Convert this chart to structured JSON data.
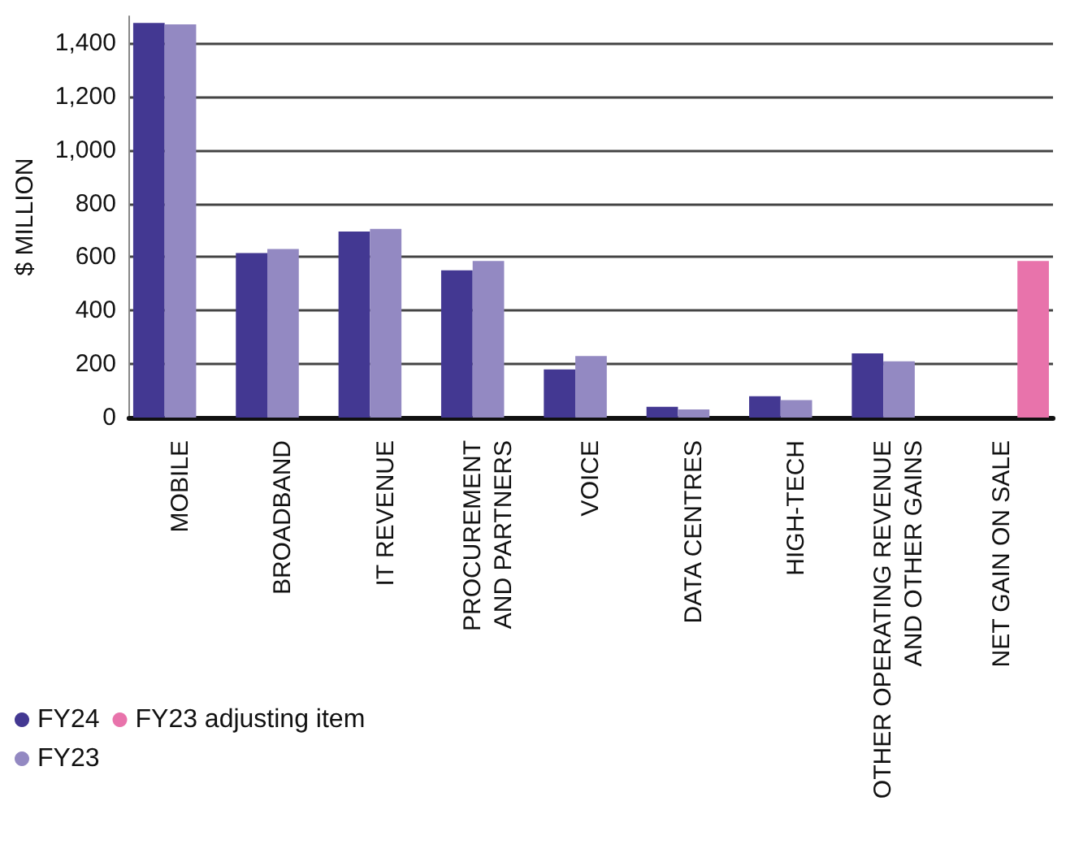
{
  "chart_data": {
    "type": "bar",
    "ylabel": "$ MILLION",
    "categories": [
      "MOBILE",
      "BROADBAND",
      "IT REVENUE",
      "PROCUREMENT\nAND PARTNERS",
      "VOICE",
      "DATA CENTRES",
      "HIGH-TECH",
      "OTHER OPERATING REVENUE\nAND OTHER GAINS",
      "NET GAIN ON SALE"
    ],
    "series": [
      {
        "name": "FY24",
        "color": "#433892",
        "values": [
          1475,
          615,
          695,
          550,
          180,
          40,
          80,
          240,
          null
        ]
      },
      {
        "name": "FY23",
        "color": "#9389c2",
        "values": [
          1470,
          630,
          705,
          585,
          230,
          30,
          65,
          210,
          null
        ]
      },
      {
        "name": "FY23 adjusting item",
        "color": "#e873ab",
        "values": [
          null,
          null,
          null,
          null,
          null,
          null,
          null,
          null,
          585
        ]
      }
    ],
    "ylim": [
      0,
      1500
    ],
    "yticks": [
      0,
      {
        "value": 200,
        "label": "200"
      },
      {
        "value": 400,
        "label": "400"
      },
      {
        "value": 600,
        "label": "600"
      },
      {
        "value": 800,
        "label": "800"
      },
      {
        "value": 1000,
        "label": "1,000"
      },
      {
        "value": 1200,
        "label": "1,200"
      },
      {
        "value": 1400,
        "label": "1,400"
      }
    ],
    "grid": "y",
    "legend": "bottom left"
  }
}
